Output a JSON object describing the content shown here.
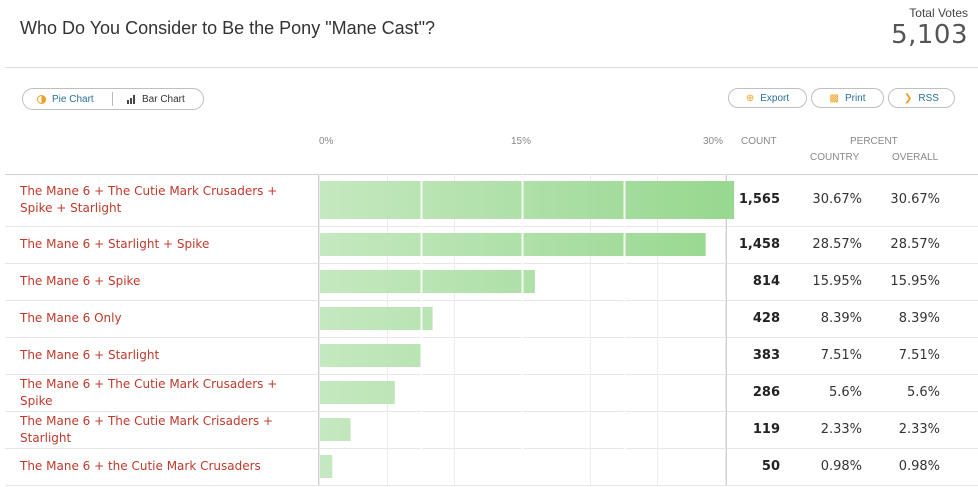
{
  "header": {
    "title": "Who Do You Consider to Be the Pony \"Mane Cast\"?",
    "total_label": "Total Votes",
    "total_value": "5,103"
  },
  "toolbar": {
    "pie_label": "Pie Chart",
    "bar_label": "Bar Chart",
    "export_label": "Export",
    "print_label": "Print",
    "rss_label": "RSS"
  },
  "columns": {
    "count": "COUNT",
    "percent": "PERCENT",
    "country": "COUNTRY",
    "overall": "OVERALL"
  },
  "colors": {
    "bar_light": "#c5e8c0",
    "bar_dark": "#98d890",
    "label": "#c0392b"
  },
  "chart_data": {
    "type": "bar",
    "orientation": "horizontal",
    "xticks": [
      "0%",
      "15%",
      "30%"
    ],
    "xlim": [
      0,
      30
    ],
    "categories": [
      "The Mane 6 + The Cutie Mark Crusaders + Spike + Starlight",
      "The Mane 6 + Starlight + Spike",
      "The Mane 6 + Spike",
      "The Mane 6 Only",
      "The Mane 6 + Starlight",
      "The Mane 6 + The Cutie Mark Crusaders + Spike",
      "The Mane 6 + The Cutie Mark Crisaders + Starlight",
      "The Mane 6 + the Cutie Mark Crusaders"
    ],
    "values": [
      30.67,
      28.57,
      15.95,
      8.39,
      7.51,
      5.6,
      2.33,
      0.98
    ],
    "counts": [
      "1,565",
      "1,458",
      "814",
      "428",
      "383",
      "286",
      "119",
      "50"
    ],
    "country_percent": [
      "30.67%",
      "28.57%",
      "15.95%",
      "8.39%",
      "7.51%",
      "5.6%",
      "2.33%",
      "0.98%"
    ],
    "overall_percent": [
      "30.67%",
      "28.57%",
      "15.95%",
      "8.39%",
      "7.51%",
      "5.6%",
      "2.33%",
      "0.98%"
    ]
  }
}
